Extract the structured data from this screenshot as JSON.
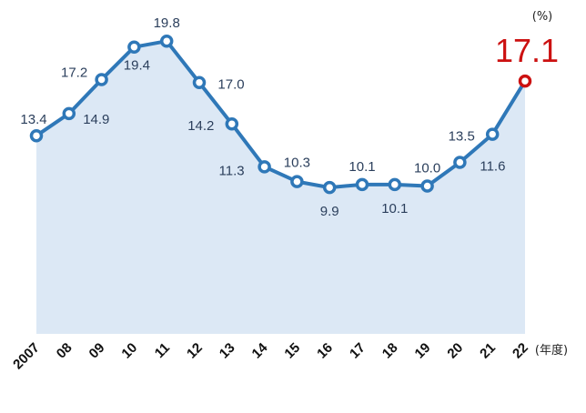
{
  "chart_data": {
    "type": "area",
    "title": "",
    "xlabel": "",
    "ylabel": "",
    "y_unit": "(%)",
    "x_unit": "(年度)",
    "categories": [
      "2007",
      "08",
      "09",
      "10",
      "11",
      "12",
      "13",
      "14",
      "15",
      "16",
      "17",
      "18",
      "19",
      "20",
      "21",
      "22"
    ],
    "values": [
      13.4,
      14.9,
      17.2,
      19.4,
      19.8,
      17.0,
      14.2,
      11.3,
      10.3,
      9.9,
      10.1,
      10.1,
      10.0,
      11.6,
      13.5,
      17.1
    ],
    "value_labels": [
      "13.4",
      "14.9",
      "17.2",
      "19.4",
      "19.8",
      "17.0",
      "14.2",
      "11.3",
      "10.3",
      "9.9",
      "10.1",
      "10.1",
      "10.0",
      "11.6",
      "13.5",
      "17.1"
    ],
    "highlight_index": 15,
    "ylim": [
      0,
      21
    ],
    "grid": false,
    "colors": {
      "line": "#2f78b8",
      "area": "#dce8f5",
      "marker_fill": "#ffffff",
      "highlight": "#cc1111",
      "label": "#2b3f5c"
    }
  }
}
